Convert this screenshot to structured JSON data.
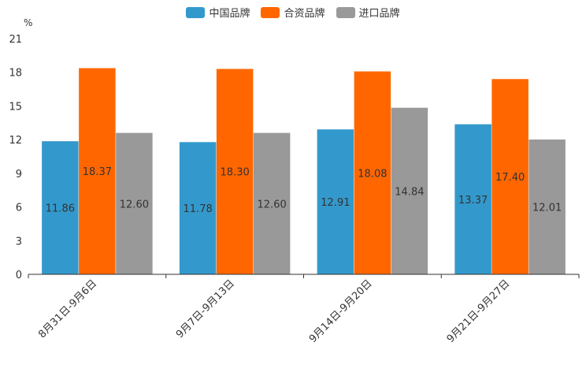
{
  "chart_data": {
    "type": "bar",
    "unit": "%",
    "categories": [
      "8月31日-9月6日",
      "9月7日-9月13日",
      "9月14日-9月20日",
      "9月21日-9月27日"
    ],
    "series": [
      {
        "name": "中国品牌",
        "color": "#3399cc",
        "values": [
          11.86,
          11.78,
          12.91,
          13.37
        ]
      },
      {
        "name": "合资品牌",
        "color": "#ff6600",
        "values": [
          18.37,
          18.3,
          18.08,
          17.4
        ]
      },
      {
        "name": "进口品牌",
        "color": "#999999",
        "values": [
          12.6,
          12.6,
          14.84,
          12.01
        ]
      }
    ],
    "ylim": [
      0,
      21
    ],
    "yticks": [
      0,
      3,
      6,
      9,
      12,
      15,
      18,
      21
    ],
    "legend_position": "top-center"
  }
}
